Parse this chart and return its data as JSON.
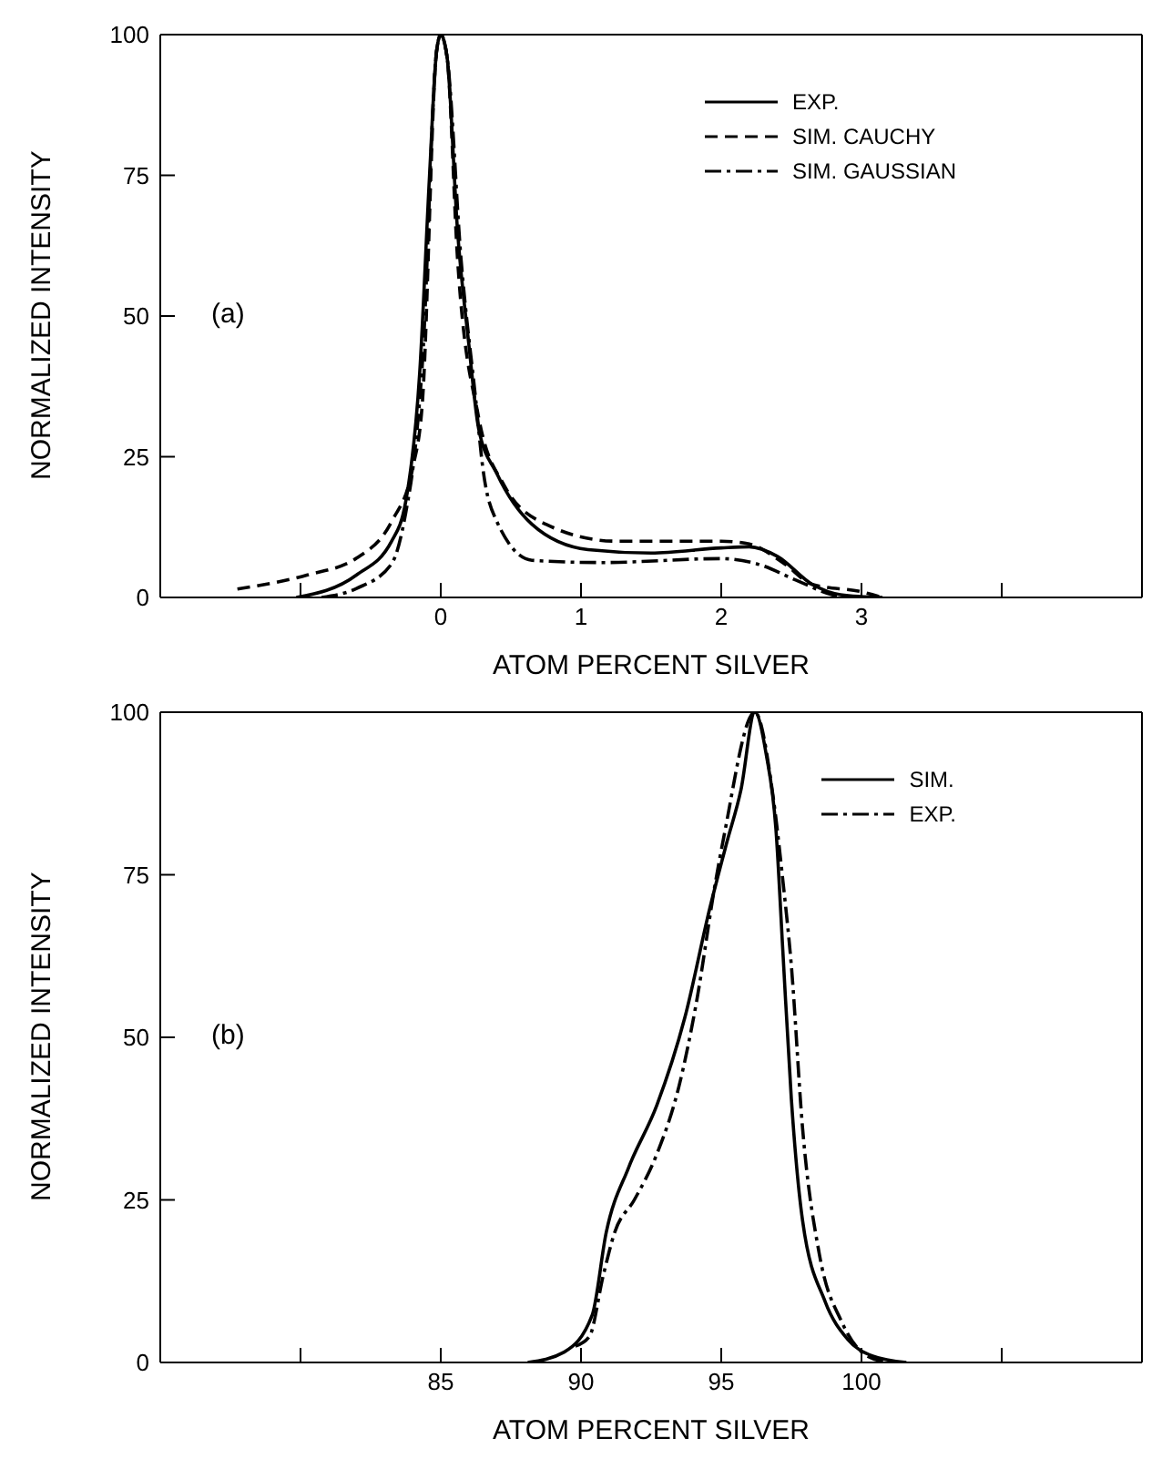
{
  "chart_data": [
    {
      "type": "line",
      "xlabel": "ATOM PERCENT SILVER",
      "ylabel": "NORMALIZED INTENSITY",
      "annotations": [
        "(a)"
      ],
      "xlim": [
        -2,
        5
      ],
      "xticks": [
        {
          "value": -1,
          "label": null
        },
        0,
        1,
        2,
        3,
        {
          "value": 4,
          "label": null
        }
      ],
      "ylim": [
        0,
        100
      ],
      "yticks": [
        0,
        25,
        50,
        75,
        100
      ],
      "legend": "top right",
      "series": [
        {
          "name": "EXP.",
          "color": "#000000",
          "line_style": "solid",
          "x": [
            -1.03,
            -0.6,
            -0.35,
            -0.25,
            -0.15,
            -0.08,
            -0.03,
            0,
            0.045,
            0.12,
            0.2,
            0.27,
            0.4,
            0.65,
            1.05,
            1.5,
            2,
            2.2,
            2.4,
            2.65,
            2.85,
            3.15
          ],
          "values": [
            0,
            4,
            10,
            17,
            40,
            75,
            97,
            100,
            96,
            65,
            45,
            30,
            22,
            13,
            8.5,
            7.9,
            8.8,
            9,
            7.3,
            2.3,
            0.5,
            0
          ]
        },
        {
          "name": "SIM. CAUCHY",
          "color": "#000000",
          "line_style": "dashed",
          "x": [
            -1.45,
            -0.95,
            -0.6,
            -0.35,
            -0.2,
            -0.13,
            -0.03,
            0,
            0.045,
            0.12,
            0.27,
            0.45,
            0.75,
            1.25,
            2,
            2.2,
            2.45,
            2.65,
            3,
            3.15
          ],
          "values": [
            1.5,
            4,
            7,
            13.5,
            23,
            35,
            97,
            100,
            96,
            60,
            32,
            20,
            13,
            10,
            10,
            9.5,
            6,
            2.3,
            1,
            0
          ]
        },
        {
          "name": "SIM. GAUSSIAN",
          "color": "#000000",
          "line_style": "dashdot",
          "x": [
            -0.85,
            -0.6,
            -0.35,
            -0.25,
            -0.18,
            -0.13,
            -0.03,
            0,
            0.045,
            0.145,
            0.25,
            0.3,
            0.4,
            0.65,
            1.15,
            2,
            2.25,
            2.55,
            2.8,
            2.9
          ],
          "values": [
            0,
            1.6,
            6,
            15,
            27,
            42,
            97,
            100,
            96,
            60,
            35,
            23,
            13.5,
            6.6,
            6.2,
            6.9,
            6,
            2.9,
            0.4,
            0
          ]
        }
      ]
    },
    {
      "type": "line",
      "xlabel": "ATOM PERCENT SILVER",
      "ylabel": "NORMALIZED INTENSITY",
      "annotations": [
        "(b)"
      ],
      "xlim": [
        75,
        110
      ],
      "xticks": [
        {
          "value": 80,
          "label": null
        },
        85,
        90,
        95,
        100,
        {
          "value": 105,
          "label": null
        }
      ],
      "ylim": [
        0,
        100
      ],
      "yticks": [
        0,
        25,
        50,
        75,
        100
      ],
      "legend": "top right",
      "series": [
        {
          "name": "SIM.",
          "color": "#000000",
          "line_style": "solid",
          "x": [
            88.1,
            89.4,
            90.4,
            90.9,
            91.7,
            92.7,
            93.7,
            94.6,
            95.2,
            95.7,
            96.2,
            96.6,
            96.95,
            97.2,
            97.5,
            97.9,
            98.7,
            99.5,
            100.4,
            101.6
          ],
          "values": [
            0,
            1.6,
            7.3,
            20,
            30,
            39.5,
            53,
            70,
            80,
            88,
            100,
            93.6,
            82,
            63,
            40.5,
            21.8,
            9.4,
            3.6,
            1,
            0
          ]
        },
        {
          "name": "EXP.",
          "color": "#000000",
          "line_style": "dashdot",
          "x": [
            89.8,
            90.3,
            90.8,
            91.2,
            91.9,
            92.7,
            93.5,
            94.1,
            94.8,
            95.1,
            96.2,
            96.85,
            97.2,
            97.5,
            97.9,
            98.5,
            99.3,
            100.2,
            101
          ],
          "values": [
            2.5,
            4,
            13.5,
            20,
            25,
            32,
            42.6,
            55,
            74,
            81,
            100,
            87,
            74,
            61,
            36,
            16.6,
            6.2,
            1,
            0
          ]
        }
      ]
    }
  ]
}
